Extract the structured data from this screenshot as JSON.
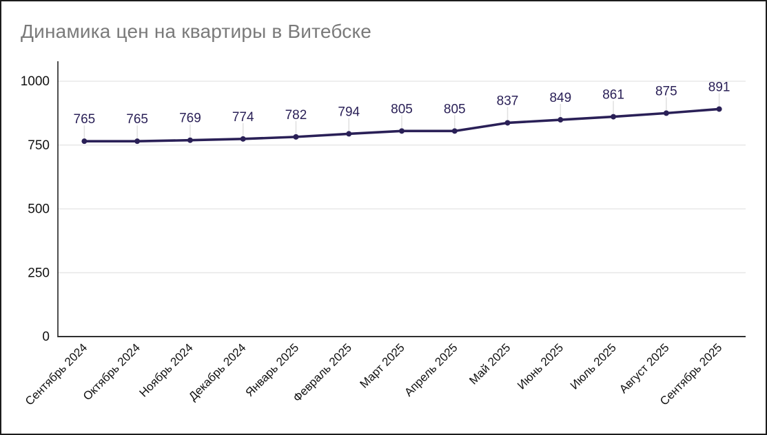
{
  "window": {
    "background": "#ffffff",
    "border_color": "#1c1c1c"
  },
  "chart_data": {
    "type": "line",
    "title": "Динамика цен на квартиры в Витебске",
    "categories": [
      "Сентябрь 2024",
      "Октябрь 2024",
      "Ноябрь 2024",
      "Декабрь 2024",
      "Январь 2025",
      "Февраль 2025",
      "Март 2025",
      "Апрель 2025",
      "Май 2025",
      "Июнь 2025",
      "Июль 2025",
      "Август 2025",
      "Сентябрь 2025"
    ],
    "values": [
      765,
      765,
      769,
      774,
      782,
      794,
      805,
      805,
      837,
      849,
      861,
      875,
      891
    ],
    "xlabel": "",
    "ylabel": "",
    "ylim": [
      0,
      1000
    ],
    "yticks": [
      0,
      250,
      500,
      750,
      1000
    ],
    "grid": true,
    "legend": "none",
    "data_labels": true,
    "x_label_rotation_deg": -45,
    "colors": {
      "series": "#2a2057",
      "data_label": "#2a2057",
      "grid": "#e3e3e3",
      "axis": "#2f2f2f",
      "tick_label": "#111111",
      "title": "#7a7a7a",
      "leader_line": "#e0e0e0"
    }
  }
}
